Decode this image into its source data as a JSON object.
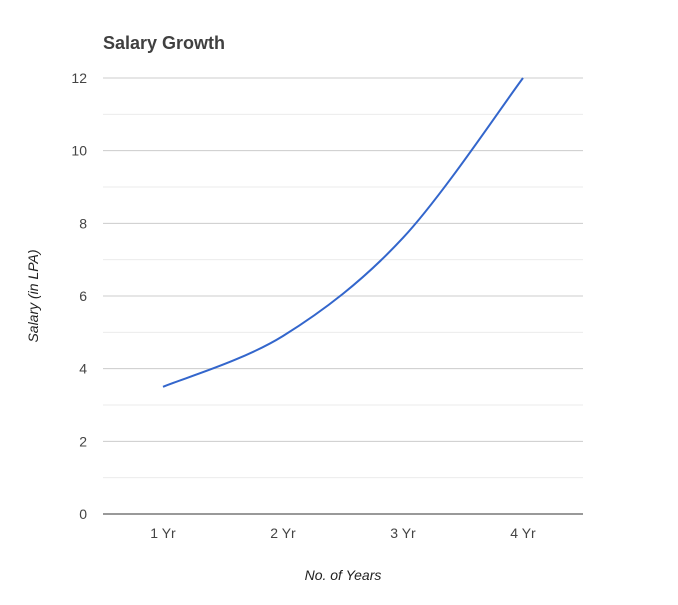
{
  "chart_data": {
    "type": "line",
    "title": "Salary Growth",
    "xlabel": "No. of Years",
    "ylabel": "Salary (in LPA)",
    "categories": [
      "1 Yr",
      "2 Yr",
      "3 Yr",
      "4 Yr"
    ],
    "series": [
      {
        "values": [
          3.5,
          4.9,
          7.6,
          12
        ]
      }
    ],
    "ylim": [
      0,
      12
    ],
    "yticks": [
      "0",
      "2",
      "4",
      "6",
      "8",
      "10",
      "12"
    ],
    "grid": true,
    "legend": "none",
    "colors": {
      "series": "#3366cc"
    }
  }
}
